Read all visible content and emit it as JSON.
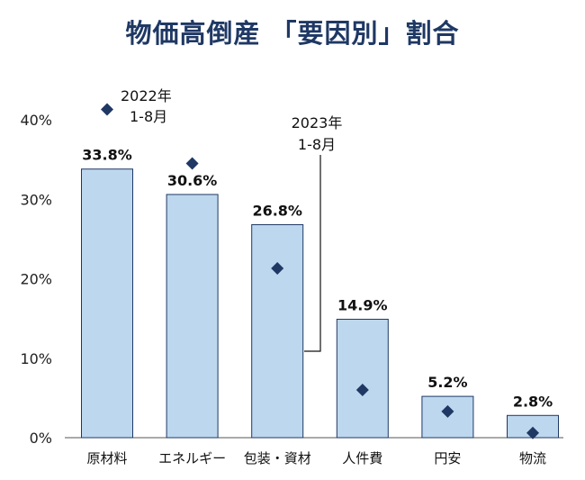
{
  "chart_data": {
    "type": "bar",
    "title": "物価高倒産 「要因別」割合",
    "categories": [
      "原材料",
      "エネルギー",
      "包装・資材",
      "人件費",
      "円安",
      "物流"
    ],
    "y_ticks": [
      "0%",
      "10%",
      "20%",
      "30%",
      "40%"
    ],
    "ylim": [
      0,
      40
    ],
    "series": [
      {
        "name": "2023年 1-8月",
        "marker": "bar",
        "values": [
          33.8,
          30.6,
          26.8,
          14.9,
          5.2,
          2.8
        ],
        "labels": [
          "33.8%",
          "30.6%",
          "26.8%",
          "14.9%",
          "5.2%",
          "2.8%"
        ]
      },
      {
        "name": "2022年 1-8月",
        "marker": "diamond",
        "values": [
          41.3,
          34.5,
          21.3,
          6.0,
          3.3,
          0.6
        ]
      }
    ],
    "legend_labels": {
      "a": [
        "2022年",
        "1-8月"
      ],
      "b": [
        "2023年",
        "1-8月"
      ]
    },
    "colors": {
      "bar_fill": "#bdd7ee",
      "bar_stroke": "#1f3864",
      "diamond": "#1f3864",
      "title": "#1f3864"
    },
    "grid": false
  }
}
